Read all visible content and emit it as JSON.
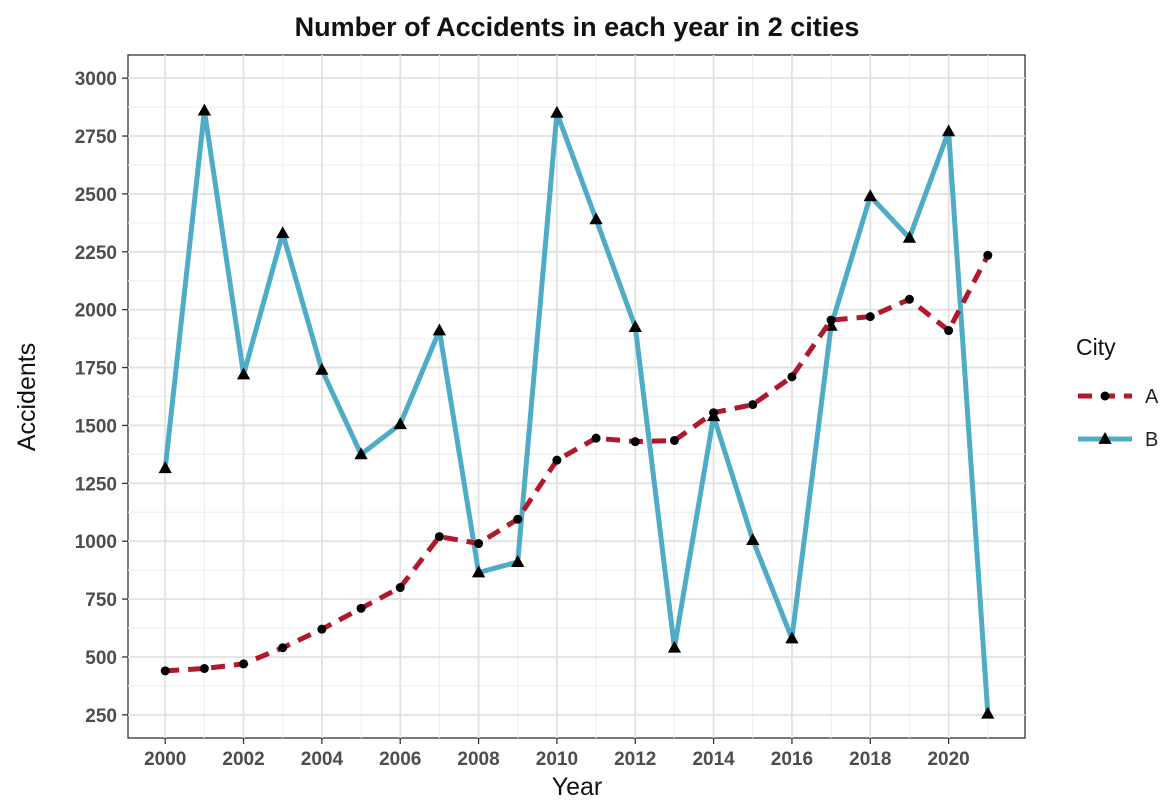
{
  "chart_data": {
    "type": "line",
    "title": "Number of Accidents in each year in 2 cities",
    "xlabel": "Year",
    "ylabel": "Accidents",
    "xlim": [
      1999.05,
      2021.95
    ],
    "ylim": [
      150,
      3100
    ],
    "x_ticks": [
      2000,
      2002,
      2004,
      2006,
      2008,
      2010,
      2012,
      2014,
      2016,
      2018,
      2020
    ],
    "x_minor_ticks": [
      2001,
      2003,
      2005,
      2007,
      2009,
      2011,
      2013,
      2015,
      2017,
      2019,
      2021
    ],
    "y_ticks": [
      250,
      500,
      750,
      1000,
      1250,
      1500,
      1750,
      2000,
      2250,
      2500,
      2750,
      3000
    ],
    "grid": true,
    "legend": {
      "title": "City",
      "position": "right"
    },
    "x": [
      2000,
      2001,
      2002,
      2003,
      2004,
      2005,
      2006,
      2007,
      2008,
      2009,
      2010,
      2011,
      2012,
      2013,
      2014,
      2015,
      2016,
      2017,
      2018,
      2019,
      2020,
      2021
    ],
    "series": [
      {
        "name": "A",
        "color": "#b2182b",
        "line": "dashed",
        "marker": "circle",
        "values": [
          440,
          450,
          470,
          540,
          620,
          710,
          800,
          1020,
          990,
          1095,
          1350,
          1445,
          1430,
          1435,
          1555,
          1590,
          1710,
          1955,
          1970,
          2045,
          1910,
          2235
        ]
      },
      {
        "name": "B",
        "color": "#4eacc6",
        "line": "solid",
        "marker": "triangle",
        "values": [
          1315,
          2860,
          1720,
          2330,
          1740,
          1375,
          1505,
          1910,
          865,
          910,
          2850,
          2390,
          1925,
          540,
          1540,
          1005,
          580,
          1930,
          2490,
          2310,
          2770,
          255
        ]
      }
    ]
  }
}
